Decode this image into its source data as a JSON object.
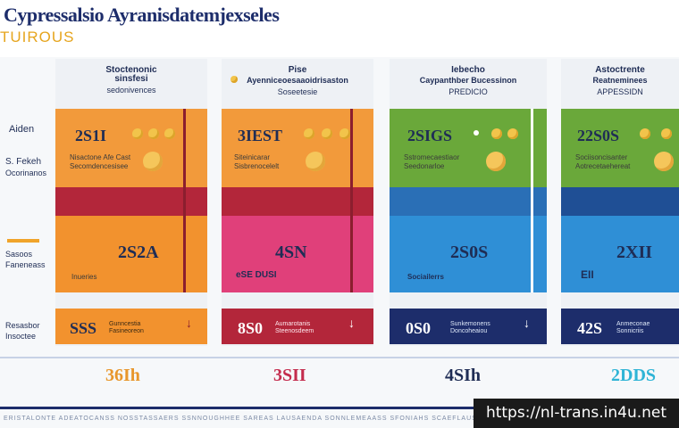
{
  "header": {
    "title": "Cypressalsio Ayranisdatemjexseles",
    "subtitle": "TUIROUS"
  },
  "row_labels": {
    "r1": "Aiden",
    "r2": "S. Fekeh",
    "r2_sub": "Ocorinanos",
    "r3": "Sasoos",
    "r3_sub": "Faneneass",
    "r4": "Resasbor",
    "r4_sub": "Insoctee"
  },
  "columns": [
    {
      "title": "Stoctenonic\nsinsfesi",
      "subtitle": "sedonivences",
      "top_value": "2S1I",
      "top_line1": "Nisactone Afe Cast",
      "top_line2": "Secomdencesisee",
      "mid_value": "2S2A",
      "mid_note": "Inueries",
      "strip_value": "SSS",
      "strip_desc": "Gunncestia\nFasineoreon",
      "price": "36Ih",
      "top_color": "#f29a3b",
      "mid_color": "#f2922e",
      "band_color": "#b3263a",
      "price_color": "#e8962b"
    },
    {
      "title": "Pise",
      "subtitle_a": "Ayenniceoesaaoidrisaston",
      "subtitle": "Soseetesie",
      "top_value": "3IEST",
      "top_line1": "Siteinicarar",
      "top_line2": "Sisbrenocelelt",
      "mid_value": "4SN",
      "mid_note": "eSE DUSI",
      "strip_value": "8S0",
      "strip_desc": "Aumarotanis\nSteenosdeem",
      "price": "3SII",
      "top_color": "#f29a3b",
      "mid_color": "#e0407a",
      "band_color": "#b3263a",
      "price_color": "#c42c4d"
    },
    {
      "title": "Iebecho",
      "subtitle_a": "Caypanthber Bucessinon",
      "subtitle": "PREDICIO",
      "top_value": "2SIGS",
      "top_line1": "Sstromecaestiaor",
      "top_line2": "Seedonarloe",
      "mid_value": "2S0S",
      "mid_note": "Sociailerrs",
      "strip_value": "0S0",
      "strip_desc": "Sunkemonens\nDoncoheaiou",
      "price": "4SIh",
      "top_color": "#6aa83a",
      "mid_color": "#2f8fd6",
      "band_color": "#2a6fb6",
      "price_color": "#1f2d55"
    },
    {
      "title": "Astoctrente",
      "subtitle_a": "Reatneminees",
      "subtitle": "APPESSIDN",
      "top_value": "22S0S",
      "top_line1": "Sociisoncisanter",
      "top_line2": "Aotrecetaehereat",
      "mid_value": "2XII",
      "mid_note": "EII",
      "strip_value": "42S",
      "strip_desc": "Anmeconae\nSonnicriis",
      "price": "2DDS",
      "top_color": "#6aa83a",
      "mid_color": "#2f8fd6",
      "band_color": "#1f4f95",
      "price_color": "#2fb4d6"
    }
  ],
  "footer": {
    "fine_print": "ERISTALONTE ADEATOCANSS NOSSTASSAERS SSNNOUGHHEE SAREAS LAUSAENDA SONNLEMEAASS SFONIAHS SCAEFLAUSSES",
    "watermark": "https://nl-trans.in4u.net"
  }
}
